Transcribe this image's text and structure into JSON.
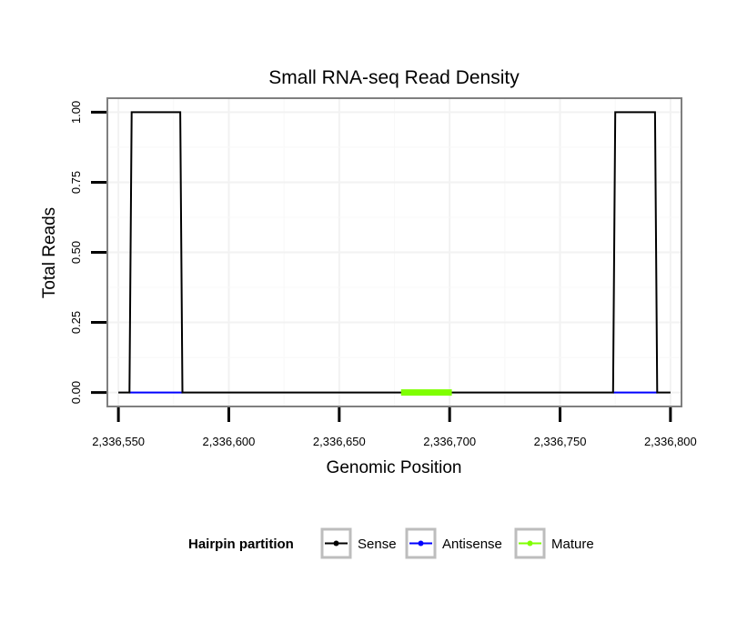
{
  "chart_data": {
    "type": "line",
    "title": "Small RNA-seq Read Density",
    "xlabel": "Genomic Position",
    "ylabel": "Total Reads",
    "xlim": [
      2336545,
      2336805
    ],
    "ylim": [
      -0.05,
      1.05
    ],
    "x_ticks": [
      2336550,
      2336600,
      2336650,
      2336700,
      2336750,
      2336800
    ],
    "x_tick_labels": [
      "2,336,550",
      "2,336,600",
      "2,336,650",
      "2,336,700",
      "2,336,750",
      "2,336,800"
    ],
    "y_ticks": [
      0,
      0.25,
      0.5,
      0.75,
      1.0
    ],
    "y_tick_labels": [
      "0.00",
      "0.25",
      "0.50",
      "0.75",
      "1.00"
    ],
    "grid": true,
    "legend": {
      "title": "Hairpin partition",
      "position": "bottom"
    },
    "series": [
      {
        "name": "Sense",
        "color": "#000000",
        "points": [
          [
            2336550,
            0
          ],
          [
            2336555,
            0
          ],
          [
            2336556,
            1
          ],
          [
            2336578,
            1
          ],
          [
            2336579,
            0
          ],
          [
            2336774,
            0
          ],
          [
            2336775,
            1
          ],
          [
            2336793,
            1
          ],
          [
            2336794,
            0
          ],
          [
            2336800,
            0
          ]
        ]
      },
      {
        "name": "Antisense",
        "color": "#0000ff",
        "points": [
          [
            2336555,
            0
          ],
          [
            2336579,
            0
          ],
          [
            2336774,
            0
          ],
          [
            2336794,
            0
          ]
        ],
        "segments": [
          [
            2336555,
            2336579
          ],
          [
            2336774,
            2336794
          ]
        ]
      },
      {
        "name": "Mature",
        "color": "#7fff00",
        "points": [
          [
            2336678,
            0
          ],
          [
            2336701,
            0
          ]
        ],
        "segments": [
          [
            2336678,
            2336701
          ]
        ]
      }
    ]
  }
}
